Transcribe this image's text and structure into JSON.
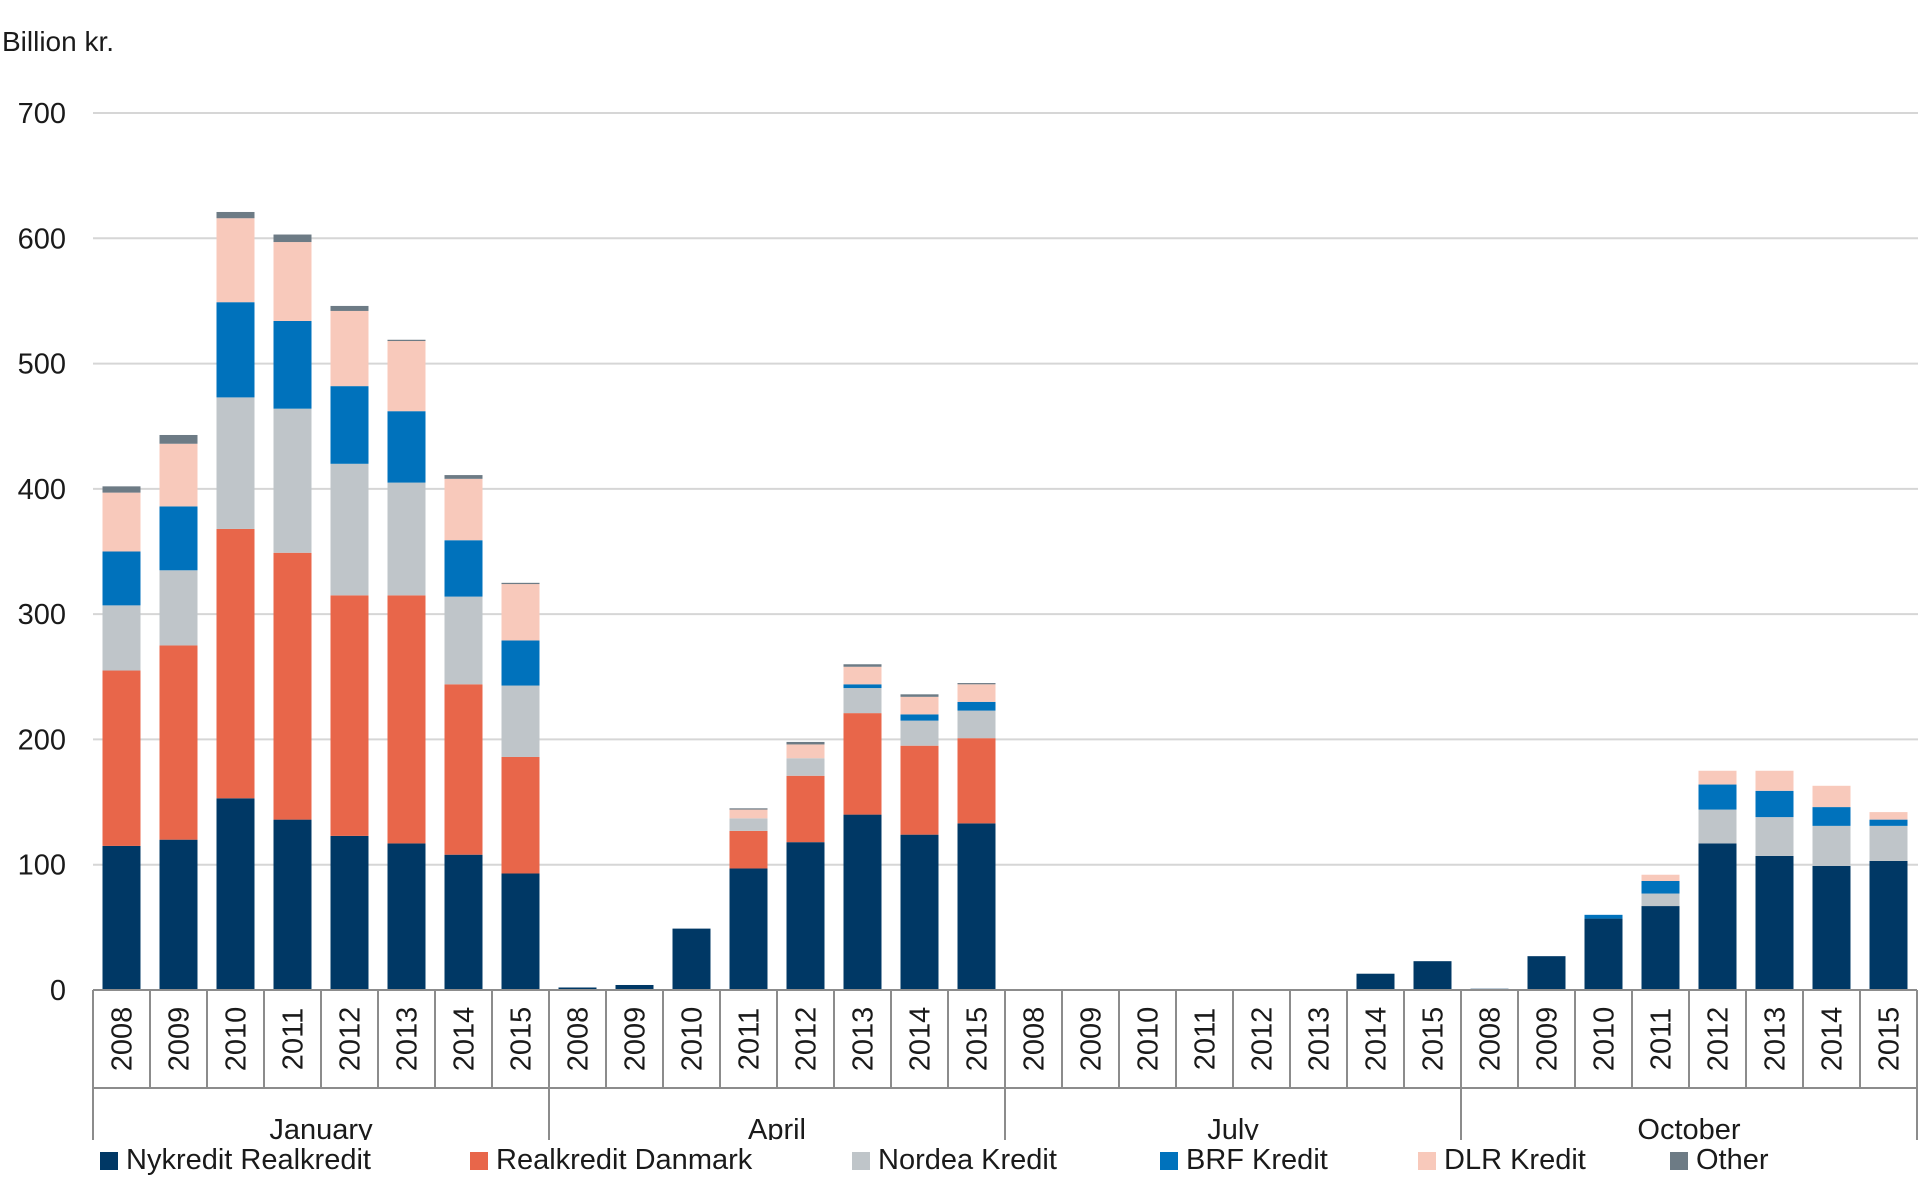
{
  "chart_data": {
    "type": "bar",
    "stacked": true,
    "title": "",
    "ylabel": "Billion kr.",
    "xlabel": "",
    "ylim": [
      0,
      700
    ],
    "yticks": [
      0,
      100,
      200,
      300,
      400,
      500,
      600,
      700
    ],
    "grid": true,
    "legend_position": "bottom",
    "groups": [
      "January",
      "April",
      "July",
      "October"
    ],
    "years": [
      "2008",
      "2009",
      "2010",
      "2011",
      "2012",
      "2013",
      "2014",
      "2015"
    ],
    "series": [
      {
        "name": "Nykredit Realkredit",
        "color": "#003865",
        "values": [
          115,
          120,
          153,
          136,
          123,
          117,
          108,
          93,
          2,
          4,
          49,
          97,
          118,
          140,
          124,
          133,
          0,
          0,
          0,
          0,
          0,
          0,
          13,
          23,
          1,
          27,
          57,
          67,
          117,
          107,
          99,
          103
        ]
      },
      {
        "name": "Realkredit Danmark",
        "color": "#e8664a",
        "values": [
          140,
          155,
          215,
          213,
          192,
          198,
          136,
          93,
          0,
          0,
          0,
          30,
          53,
          81,
          71,
          68,
          0,
          0,
          0,
          0,
          0,
          0,
          0,
          0,
          0,
          0,
          0,
          0,
          0,
          0,
          0,
          0
        ]
      },
      {
        "name": "Nordea Kredit",
        "color": "#bfc5c9",
        "values": [
          52,
          60,
          105,
          115,
          105,
          90,
          70,
          57,
          0,
          0,
          0,
          10,
          14,
          20,
          20,
          22,
          0,
          0,
          0,
          0,
          0,
          0,
          0,
          0,
          0,
          0,
          0,
          10,
          27,
          31,
          32,
          28
        ]
      },
      {
        "name": "BRF Kredit",
        "color": "#0072bc",
        "values": [
          43,
          51,
          76,
          70,
          62,
          57,
          45,
          36,
          0,
          0,
          0,
          0,
          0,
          3,
          5,
          7,
          0,
          0,
          0,
          0,
          0,
          0,
          0,
          0,
          0,
          0,
          3,
          10,
          20,
          21,
          15,
          5
        ]
      },
      {
        "name": "DLR Kredit",
        "color": "#f8c9bb",
        "values": [
          47,
          50,
          67,
          63,
          60,
          56,
          49,
          45,
          0,
          0,
          0,
          7,
          11,
          14,
          14,
          14,
          0,
          0,
          0,
          0,
          0,
          0,
          0,
          0,
          0,
          0,
          0,
          5,
          11,
          16,
          17,
          6
        ]
      },
      {
        "name": "Other",
        "color": "#6d7b85",
        "values": [
          5,
          7,
          5,
          6,
          4,
          1,
          3,
          1,
          0,
          0,
          0,
          1,
          2,
          2,
          2,
          1,
          0,
          0,
          0,
          0,
          0,
          0,
          0,
          0,
          0,
          0,
          0,
          0,
          0,
          0,
          0,
          0
        ]
      }
    ]
  }
}
